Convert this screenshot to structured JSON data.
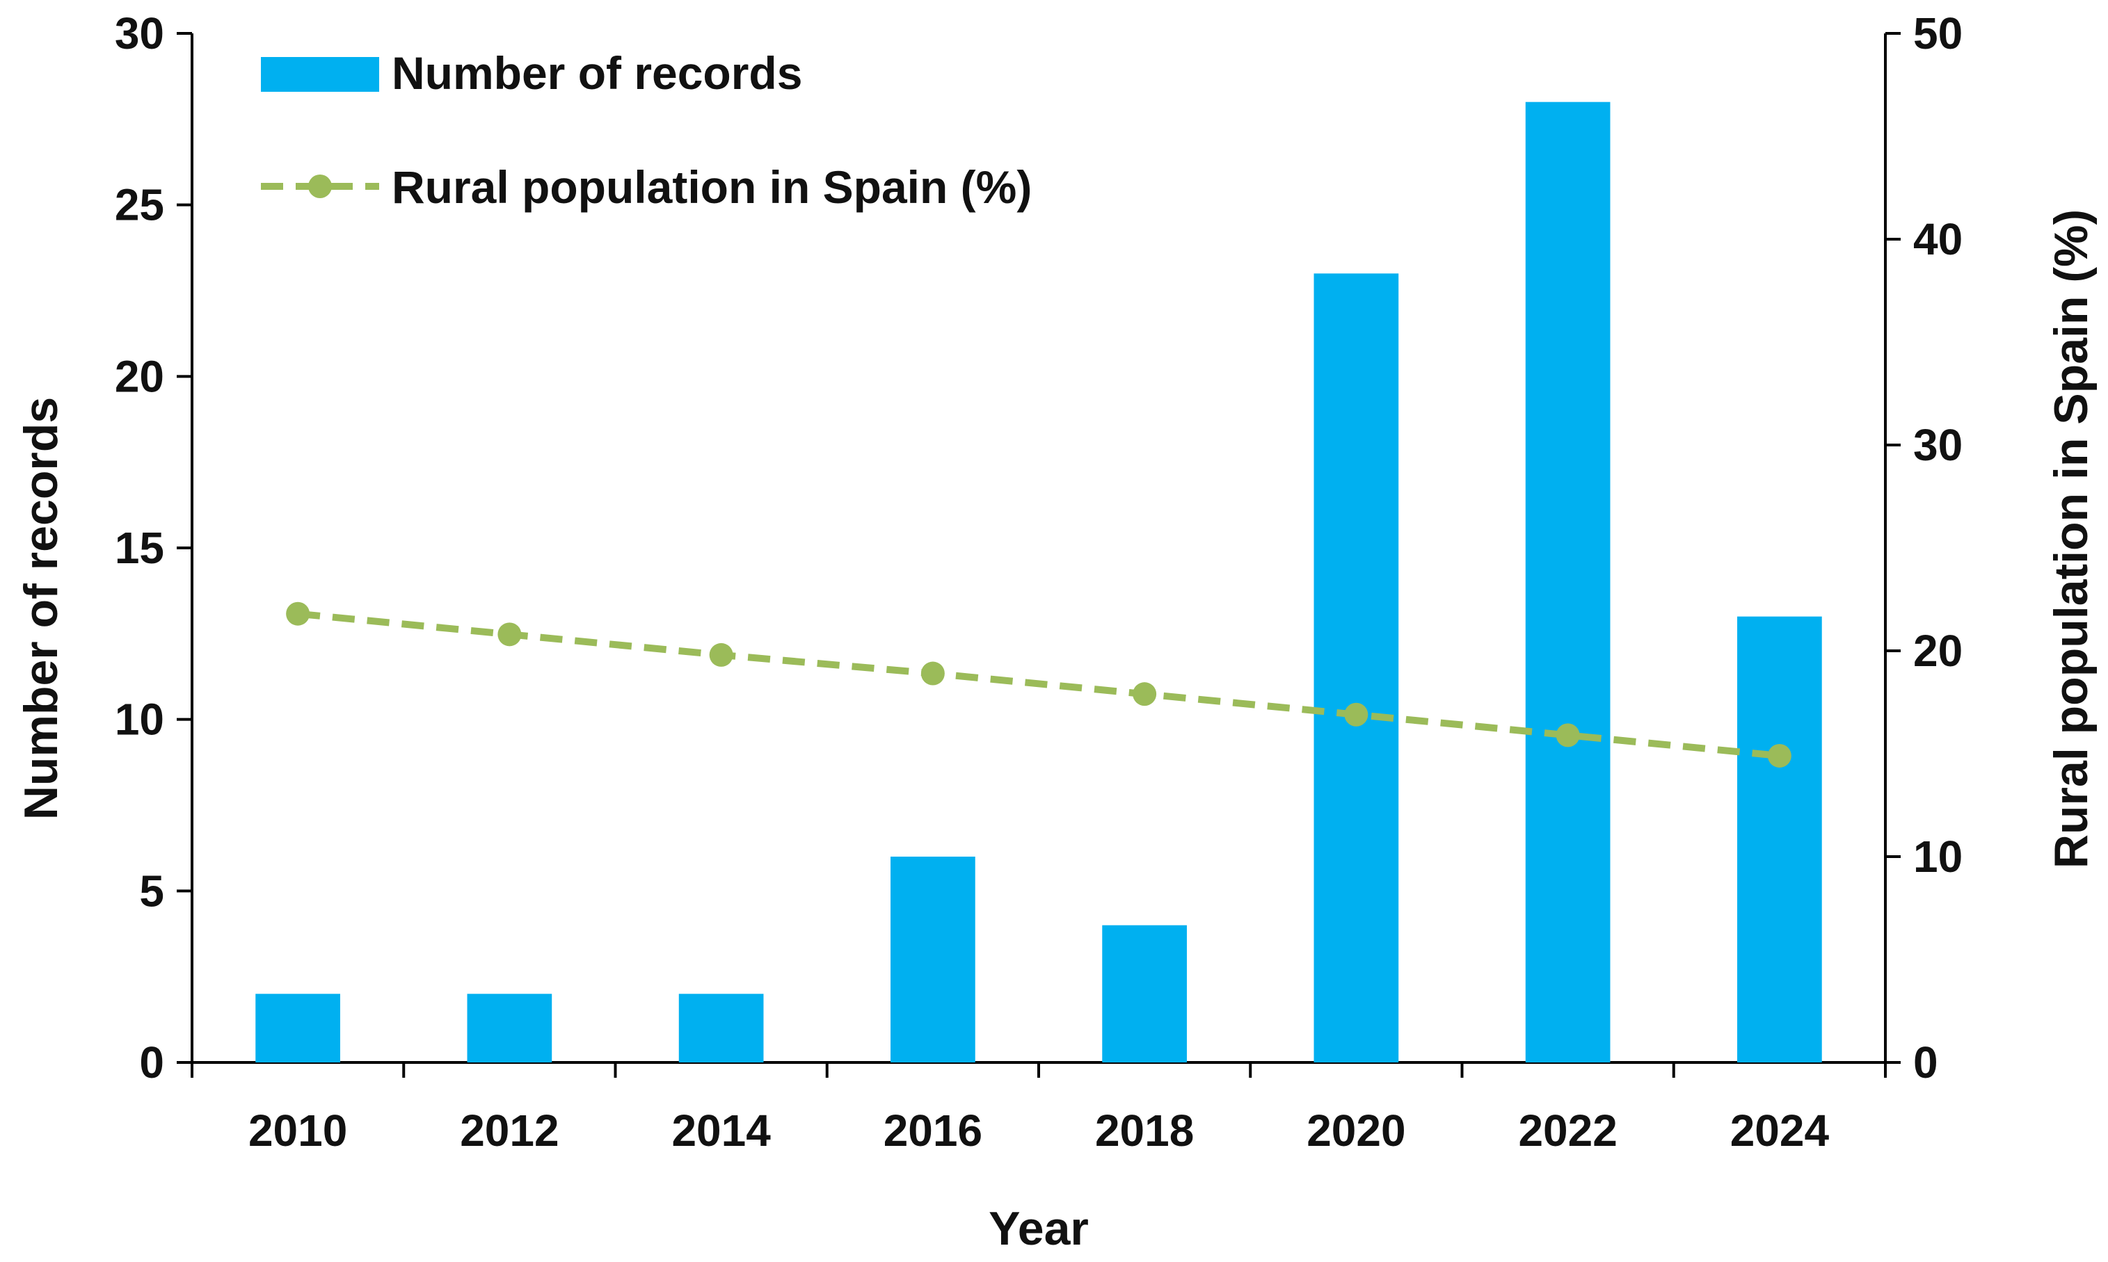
{
  "chart_data": {
    "type": "bar",
    "categories": [
      "2010",
      "2012",
      "2014",
      "2016",
      "2018",
      "2020",
      "2022",
      "2024"
    ],
    "series": [
      {
        "name": "Number of records",
        "type": "bar",
        "axis": "left",
        "color": "#00B0F0",
        "values": [
          2,
          2,
          2,
          6,
          4,
          23,
          28,
          13
        ]
      },
      {
        "name": "Rural population in Spain (%)",
        "type": "line",
        "style": "dashed",
        "marker": "circle",
        "axis": "right",
        "color": "#9BBB59",
        "values": [
          21.8,
          20.8,
          19.8,
          18.9,
          17.9,
          16.9,
          15.9,
          14.9
        ]
      }
    ],
    "xlabel": "Year",
    "ylabel": "Number of records",
    "ylabel_right": "Rural population in Spain (%)",
    "ylim": [
      0,
      30
    ],
    "ylim_right": [
      0,
      50
    ],
    "yticks": [
      "0",
      "5",
      "10",
      "15",
      "20",
      "25",
      "30"
    ],
    "yticks_right": [
      "0",
      "10",
      "20",
      "30",
      "40",
      "50"
    ],
    "legend_position": "top-left",
    "grid": false
  }
}
